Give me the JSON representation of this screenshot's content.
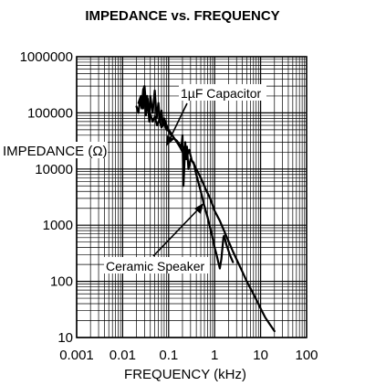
{
  "chart_data": {
    "type": "line",
    "title": "IMPEDANCE vs. FREQUENCY",
    "xlabel": "FREQUENCY (kHz)",
    "ylabel": "IMPEDANCE (Ω)",
    "x_scale": "log",
    "y_scale": "log",
    "xlim": [
      0.001,
      100
    ],
    "ylim": [
      10,
      1000000
    ],
    "grid": true,
    "x_ticks": [
      "0.001",
      "0.01",
      "0.1",
      "1",
      "10",
      "100"
    ],
    "y_ticks": [
      "1000000",
      "100000",
      "10000",
      "1000",
      "100",
      "10"
    ],
    "annotations": [
      {
        "text": "1µF Capacitor"
      },
      {
        "text": "Ceramic Speaker"
      }
    ],
    "series": [
      {
        "x": [
          0.02,
          0.022,
          0.024,
          0.026,
          0.028,
          0.03,
          0.032,
          0.034,
          0.036,
          0.04,
          0.045,
          0.05,
          0.056,
          0.063,
          0.07,
          0.08,
          0.09,
          0.1,
          0.11,
          0.125,
          0.14,
          0.16,
          0.18,
          0.2,
          0.22,
          0.25,
          0.28,
          0.32,
          0.36,
          0.4,
          0.5,
          0.63,
          0.8,
          1.0,
          1.3,
          1.6,
          2.0,
          2.5,
          3.2,
          4.0,
          5.0,
          6.3,
          8.0,
          10.0,
          12.5,
          16.0,
          20.0
        ],
        "values": [
          130000,
          100000,
          180000,
          120000,
          260000,
          300000,
          140000,
          200000,
          110000,
          95000,
          70000,
          85000,
          60000,
          75000,
          55000,
          65000,
          50000,
          48000,
          42000,
          38000,
          33000,
          28000,
          24000,
          20000,
          25000,
          17000,
          22000,
          14000,
          12000,
          10000,
          7000,
          4500,
          3000,
          1800,
          1200,
          800,
          520,
          340,
          220,
          150,
          100,
          70,
          48,
          33,
          23,
          17,
          13
        ]
      },
      {
        "x": [
          0.022,
          0.025,
          0.028,
          0.03,
          0.032,
          0.035,
          0.038,
          0.04,
          0.045,
          0.05,
          0.055,
          0.06,
          0.065,
          0.07,
          0.075,
          0.08,
          0.09,
          0.1,
          0.11,
          0.12,
          0.13,
          0.15,
          0.17,
          0.19,
          0.2,
          0.21,
          0.22,
          0.23,
          0.24,
          0.25,
          0.27,
          0.3,
          0.35,
          0.4,
          0.5,
          0.6,
          0.7,
          0.8,
          0.9,
          1.0,
          1.1,
          1.2,
          1.3,
          1.4,
          1.5,
          1.55,
          1.6,
          1.7,
          1.8,
          2.0,
          2.2,
          2.5
        ],
        "values": [
          150000,
          200000,
          120000,
          250000,
          90000,
          180000,
          70000,
          200000,
          100000,
          250000,
          80000,
          150000,
          70000,
          110000,
          60000,
          80000,
          60000,
          50000,
          45000,
          40000,
          35000,
          32000,
          28000,
          25000,
          40000,
          5000,
          12000,
          30000,
          15000,
          25000,
          10000,
          15000,
          13000,
          8000,
          4000,
          2200,
          1400,
          900,
          600,
          400,
          300,
          220,
          170,
          250,
          450,
          600,
          650,
          550,
          450,
          350,
          280,
          220
        ]
      }
    ]
  }
}
